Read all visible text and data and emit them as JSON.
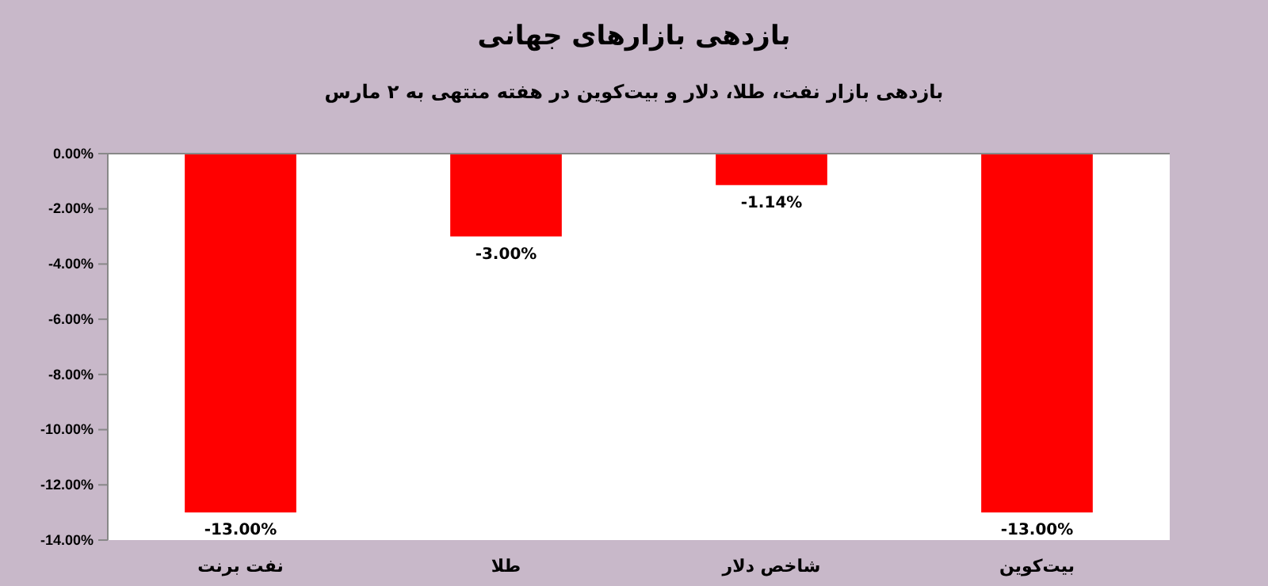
{
  "chart_data": {
    "type": "bar",
    "title": "بازدهی بازارهای جهانی",
    "subtitle": "بازدهی بازار نفت، طلا، دلار و بیت‌کوین در هفته منتهی به ۲ مارس",
    "categories": [
      "نفت برنت",
      "طلا",
      "شاخص دلار",
      "بیت‌کوین"
    ],
    "values": [
      -13,
      -3,
      -1.14,
      -13
    ],
    "color": "#ff0000",
    "value_labels": [
      "-13.00%",
      "-3.00%",
      "-1.14%",
      "-13.00%"
    ],
    "ylim": [
      -14,
      0
    ],
    "yticks": [
      {
        "value": 0,
        "label": "0.00%"
      },
      {
        "value": -2,
        "label": "-2.00%"
      },
      {
        "value": -4,
        "label": "-4.00%"
      },
      {
        "value": -6,
        "label": "-6.00%"
      },
      {
        "value": -8,
        "label": "-8.00%"
      },
      {
        "value": -10,
        "label": "-10.00%"
      },
      {
        "value": -12,
        "label": "-12.00%"
      },
      {
        "value": -14,
        "label": "-14.00%"
      }
    ],
    "grid": false
  }
}
